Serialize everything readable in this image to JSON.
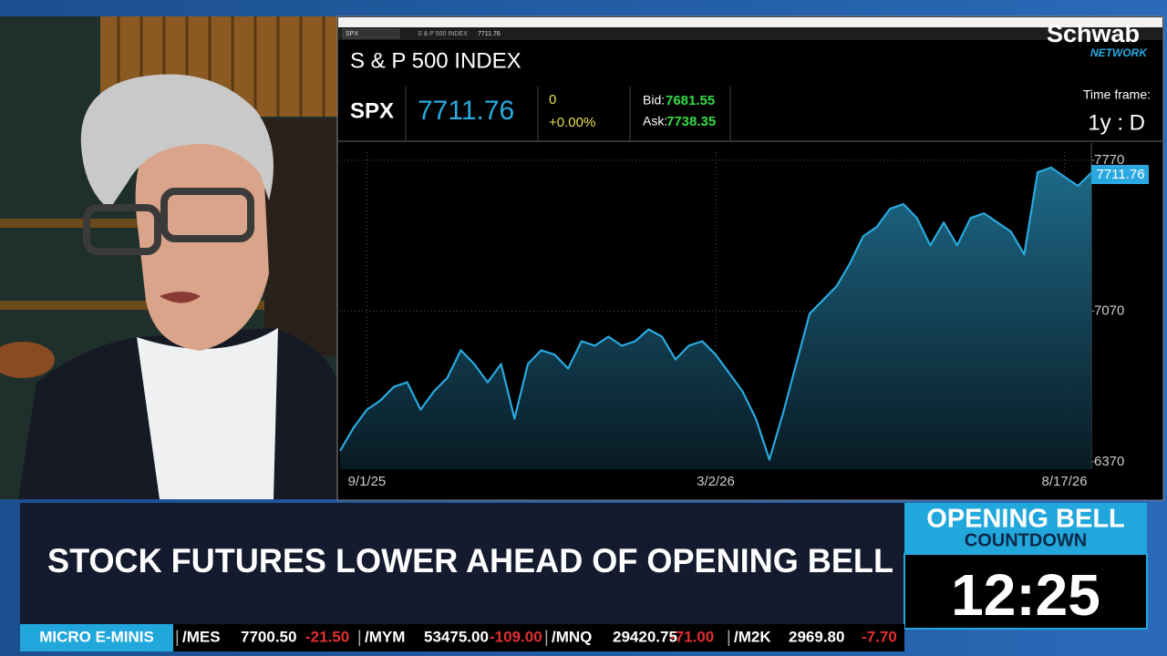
{
  "broadcast": {
    "logo": "Schwab",
    "logo_sub": "NETWORK",
    "headline": "STOCK FUTURES LOWER AHEAD OF OPENING BELL",
    "countdown": {
      "title": "OPENING BELL",
      "subtitle": "COUNTDOWN",
      "time": "12:25"
    },
    "ticker": {
      "label": "MICRO E-MINIS",
      "items": [
        {
          "symbol": "/MES",
          "price": "7700.50",
          "change": "-21.50"
        },
        {
          "symbol": "/MYM",
          "price": "53475.00",
          "change": "-109.00"
        },
        {
          "symbol": "/MNQ",
          "price": "29420.75",
          "change": "-71.00"
        },
        {
          "symbol": "/M2K",
          "price": "2969.80",
          "change": "-7.70"
        }
      ]
    }
  },
  "quote": {
    "name": "S & P 500 INDEX",
    "symbol": "SPX",
    "last": "7711.76",
    "net_change": "0",
    "pct_change": "+0.00%",
    "bid_label": "Bid:",
    "bid": "7681.55",
    "ask_label": "Ask:",
    "ask": "7738.35",
    "timeframe_label": "Time frame:",
    "timeframe": "1y : D"
  },
  "chart_data": {
    "type": "area",
    "categories": [
      null,
      null,
      "9/1/25",
      null,
      null,
      null,
      null,
      null,
      null,
      null,
      null,
      null,
      null,
      null,
      null,
      null,
      null,
      null,
      null,
      null,
      null,
      null,
      null,
      null,
      null,
      null,
      null,
      null,
      "3/2/26",
      null,
      null,
      null,
      null,
      null,
      null,
      null,
      null,
      null,
      null,
      null,
      null,
      null,
      null,
      null,
      null,
      null,
      null,
      null,
      null,
      null,
      null,
      null,
      null,
      null,
      "8/17/26",
      null,
      null
    ],
    "values": [
      6421,
      6527,
      6612,
      6654,
      6718,
      6739,
      6612,
      6697,
      6760,
      6888,
      6824,
      6739,
      6824,
      6570,
      6824,
      6888,
      6867,
      6803,
      6930,
      6909,
      6951,
      6909,
      6930,
      6985,
      6951,
      6845,
      6909,
      6930,
      6867,
      6782,
      6697,
      6570,
      6380,
      6591,
      6824,
      7057,
      7121,
      7184,
      7290,
      7418,
      7460,
      7545,
      7566,
      7502,
      7375,
      7481,
      7375,
      7502,
      7524,
      7481,
      7439,
      7333,
      7714,
      7736,
      7693,
      7651,
      7711.76
    ],
    "color": "#2aa9e0",
    "ylim": [
      6200,
      7850
    ],
    "yticks": [
      6370,
      7070,
      7770
    ],
    "grid": true
  }
}
